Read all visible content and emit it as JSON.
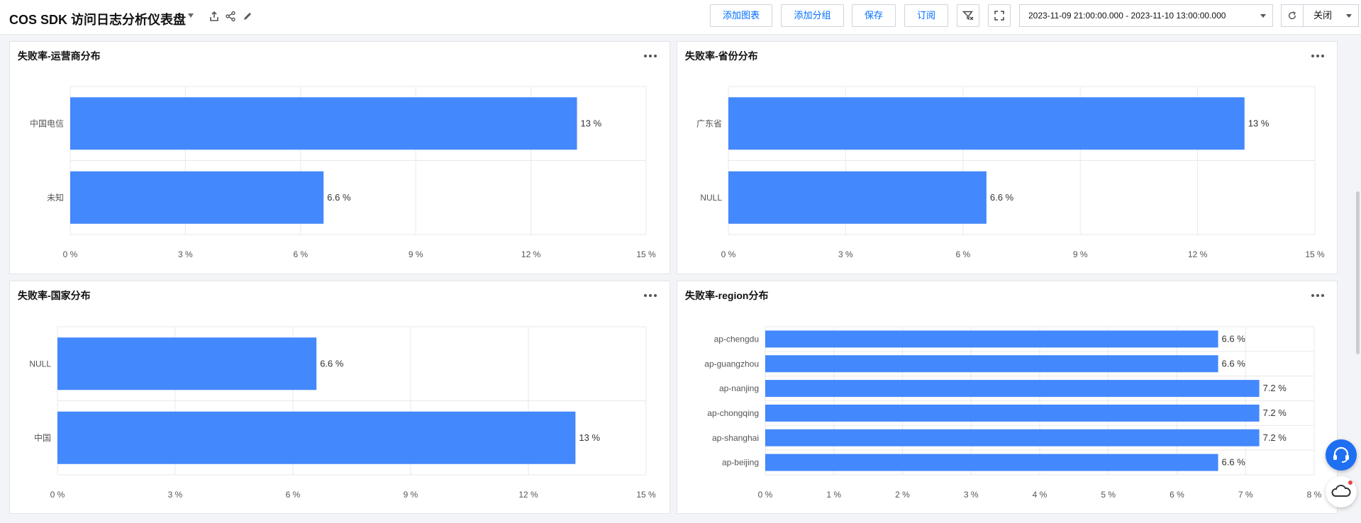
{
  "header": {
    "title": "COS SDK 访问日志分析仪表盘",
    "buttons": {
      "add_chart": "添加图表",
      "add_group": "添加分组",
      "save": "保存",
      "subscribe": "订阅"
    },
    "time_range": "2023-11-09 21:00:00.000 - 2023-11-10 13:00:00.000",
    "refresh_label": "关闭"
  },
  "panels": [
    {
      "title": "失败率-运营商分布",
      "more": "more-icon"
    },
    {
      "title": "失败率-省份分布",
      "more": "more-icon"
    },
    {
      "title": "失败率-国家分布",
      "more": "more-icon"
    },
    {
      "title": "失败率-region分布",
      "more": "more-icon"
    }
  ],
  "chart_data": [
    {
      "type": "bar",
      "orientation": "horizontal",
      "title": "失败率-运营商分布",
      "categories": [
        "中国电信",
        "未知"
      ],
      "values": [
        13.2,
        6.6
      ],
      "labels": [
        "13 %",
        "6.6 %"
      ],
      "xlim": [
        0,
        15
      ],
      "ticks": [
        "0 %",
        "3 %",
        "6 %",
        "9 %",
        "12 %",
        "15 %"
      ],
      "tick_values": [
        0,
        3,
        6,
        9,
        12,
        15
      ],
      "grid": true,
      "color": "#4388fc"
    },
    {
      "type": "bar",
      "orientation": "horizontal",
      "title": "失败率-省份分布",
      "categories": [
        "广东省",
        "NULL"
      ],
      "values": [
        13.2,
        6.6
      ],
      "labels": [
        "13 %",
        "6.6 %"
      ],
      "xlim": [
        0,
        15
      ],
      "ticks": [
        "0 %",
        "3 %",
        "6 %",
        "9 %",
        "12 %",
        "15 %"
      ],
      "tick_values": [
        0,
        3,
        6,
        9,
        12,
        15
      ],
      "grid": true,
      "color": "#4388fc"
    },
    {
      "type": "bar",
      "orientation": "horizontal",
      "title": "失败率-国家分布",
      "categories": [
        "NULL",
        "中国"
      ],
      "values": [
        6.6,
        13.2
      ],
      "labels": [
        "6.6 %",
        "13 %"
      ],
      "xlim": [
        0,
        15
      ],
      "ticks": [
        "0 %",
        "3 %",
        "6 %",
        "9 %",
        "12 %",
        "15 %"
      ],
      "tick_values": [
        0,
        3,
        6,
        9,
        12,
        15
      ],
      "grid": true,
      "color": "#4388fc"
    },
    {
      "type": "bar",
      "orientation": "horizontal",
      "title": "失败率-region分布",
      "categories": [
        "ap-chengdu",
        "ap-guangzhou",
        "ap-nanjing",
        "ap-chongqing",
        "ap-shanghai",
        "ap-beijing"
      ],
      "values": [
        6.6,
        6.6,
        7.2,
        7.2,
        7.2,
        6.6
      ],
      "labels": [
        "6.6 %",
        "6.6 %",
        "7.2 %",
        "7.2 %",
        "7.2 %",
        "6.6 %"
      ],
      "xlim": [
        0,
        8
      ],
      "ticks": [
        "0 %",
        "1 %",
        "2 %",
        "3 %",
        "4 %",
        "5 %",
        "6 %",
        "7 %",
        "8 %"
      ],
      "tick_values": [
        0,
        1,
        2,
        3,
        4,
        5,
        6,
        7,
        8
      ],
      "grid": true,
      "color": "#4388fc"
    }
  ]
}
